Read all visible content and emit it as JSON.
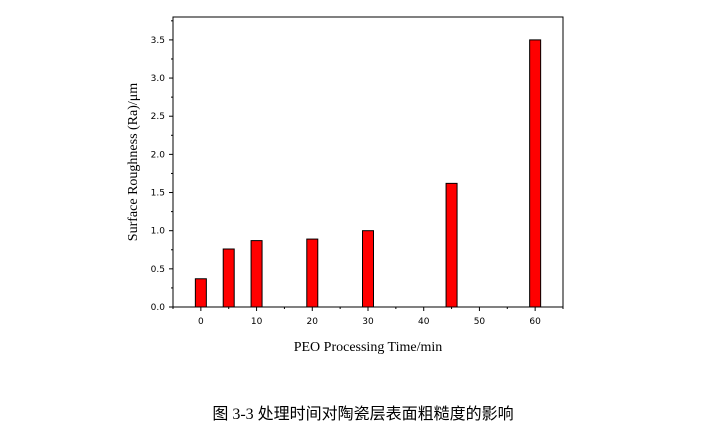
{
  "chart_data": {
    "type": "bar",
    "x": [
      0,
      5,
      10,
      20,
      30,
      45,
      60
    ],
    "values": [
      0.37,
      0.76,
      0.87,
      0.89,
      1.0,
      1.62,
      3.5
    ],
    "xlabel": "PEO Processing Time/min",
    "ylabel": "Surface Roughness (Ra)/μm",
    "xlim": [
      -5,
      65
    ],
    "ylim": [
      0,
      3.8
    ],
    "xticks": [
      0,
      10,
      20,
      30,
      40,
      50,
      60
    ],
    "yticks": [
      "0.0",
      "0.5",
      "1.0",
      "1.5",
      "2.0",
      "2.5",
      "3.0",
      "3.5"
    ],
    "grid": false,
    "bar_color": "#ff0000"
  },
  "caption": "图  3-3  处理时间对陶瓷层表面粗糙度的影响"
}
